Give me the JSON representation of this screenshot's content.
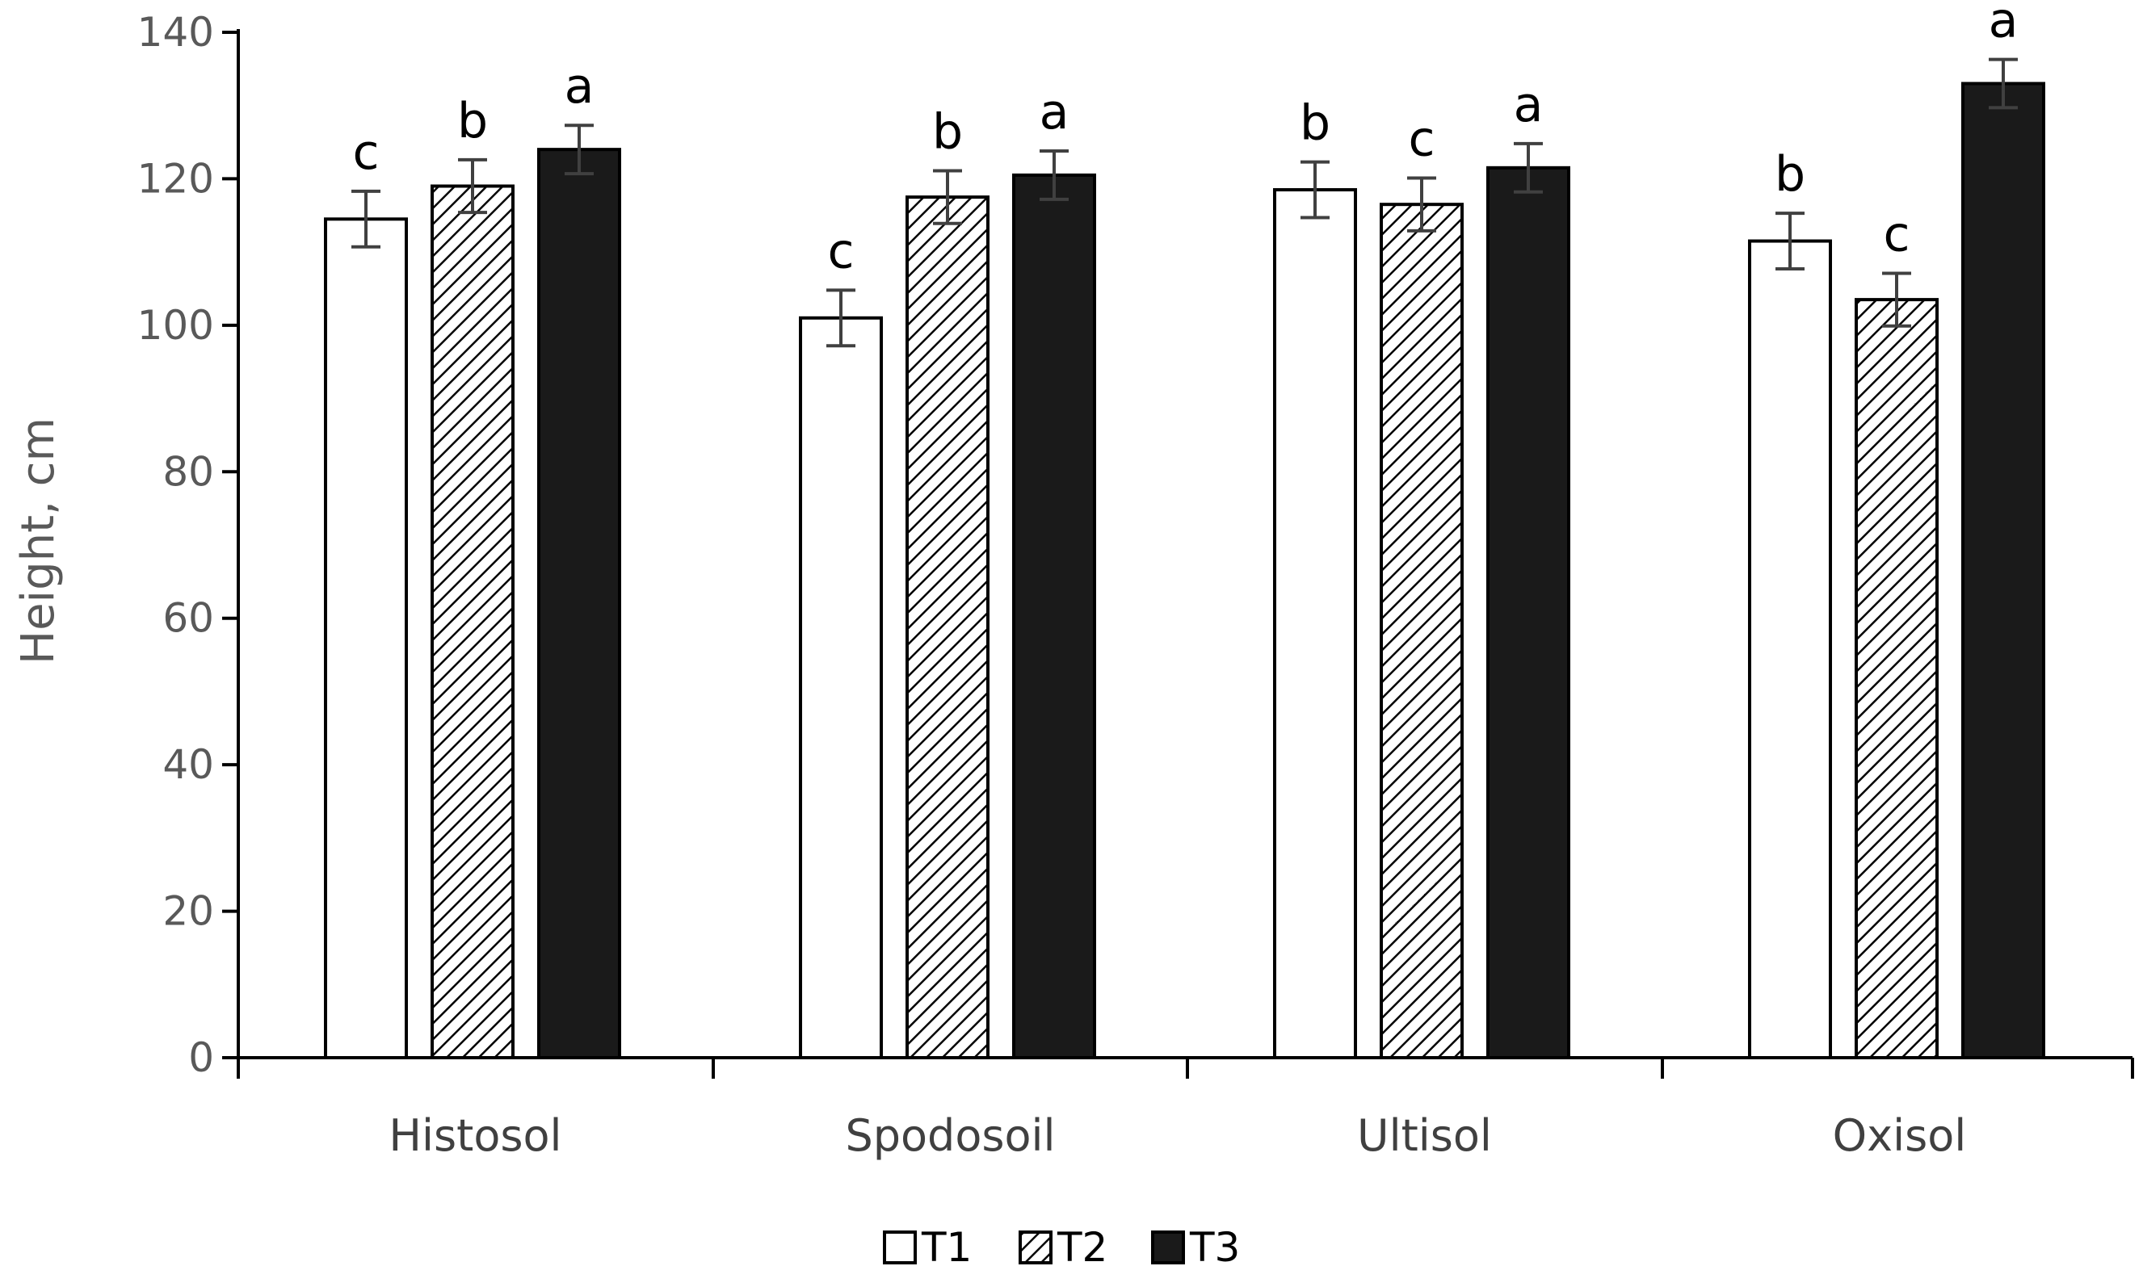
{
  "chart_data": {
    "type": "bar",
    "title": "",
    "xlabel": "",
    "ylabel": "Height, cm",
    "ylim": [
      0,
      140
    ],
    "yticks": [
      0,
      20,
      40,
      60,
      80,
      100,
      120,
      140
    ],
    "grid": false,
    "legend_position": "bottom-center",
    "categories": [
      "Histosol",
      "Spodosoil",
      "Ultisol",
      "Oxisol"
    ],
    "series": [
      {
        "name": "T1",
        "fill": "white",
        "values": [
          114.5,
          101,
          118.5,
          111.5
        ],
        "errors": [
          3.8,
          3.8,
          3.8,
          3.8
        ],
        "sig": [
          "c",
          "c",
          "b",
          "b"
        ]
      },
      {
        "name": "T2",
        "fill": "hatched",
        "values": [
          119,
          117.5,
          116.5,
          103.5
        ],
        "errors": [
          3.6,
          3.6,
          3.6,
          3.6
        ],
        "sig": [
          "b",
          "b",
          "c",
          "c"
        ]
      },
      {
        "name": "T3",
        "fill": "black",
        "values": [
          124,
          120.5,
          121.5,
          133
        ],
        "errors": [
          3.3,
          3.3,
          3.3,
          3.3
        ],
        "sig": [
          "a",
          "a",
          "a",
          "a"
        ]
      }
    ]
  },
  "colors": {
    "axis": "#000000",
    "bar_outline": "#000000",
    "t1_fill": "#ffffff",
    "t3_fill": "#1a1a1a",
    "hatch": "#000000",
    "error_bar": "#404040"
  }
}
